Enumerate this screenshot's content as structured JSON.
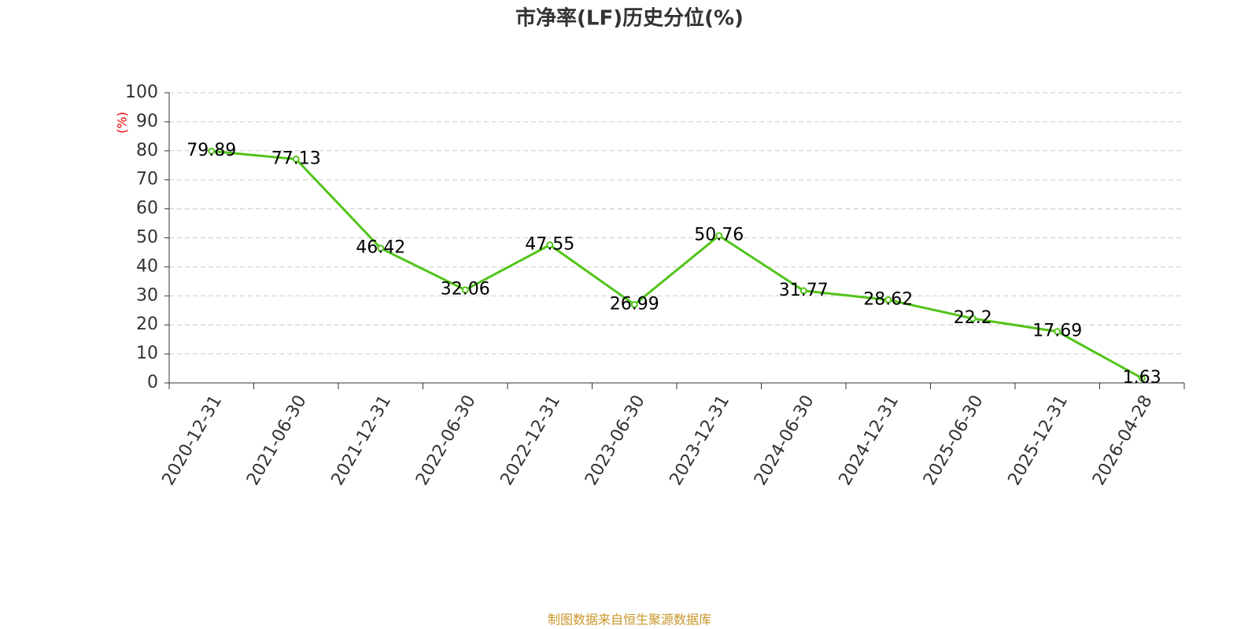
{
  "chart_data": {
    "type": "line",
    "title": "市净率(LF)历史分位(%)",
    "y_label": "(%)",
    "source": "制图数据来自恒生聚源数据库",
    "categories": [
      "2020-12-31",
      "2021-06-30",
      "2021-12-31",
      "2022-06-30",
      "2022-12-31",
      "2023-06-30",
      "2023-12-31",
      "2024-06-30",
      "2024-12-31",
      "2025-06-30",
      "2025-12-31",
      "2026-04-28"
    ],
    "values": [
      79.89,
      77.13,
      46.42,
      32.06,
      47.55,
      26.99,
      50.76,
      31.77,
      28.62,
      22.2,
      17.69,
      1.63
    ],
    "color": "#52c41a",
    "ylim": [
      0,
      100
    ],
    "yticks": [
      0,
      10,
      20,
      30,
      40,
      50,
      60,
      70,
      80,
      90,
      100
    ],
    "grid": true
  }
}
